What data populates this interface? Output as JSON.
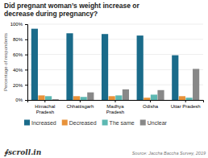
{
  "chart_data": {
    "type": "bar",
    "title": "Did pregnant woman’s weight increase or\ndecrease during pregnancy?",
    "categories": [
      "Himachal\nPradesh",
      "Chhattisgarh",
      "Madhya\nPradesh",
      "Odisha",
      "Uttar Pradesh"
    ],
    "series": [
      {
        "name": "Increased",
        "color": "#1a6b8a",
        "values": [
          94,
          88,
          87,
          85,
          59
        ]
      },
      {
        "name": "Decreased",
        "color": "#e8923a",
        "values": [
          6,
          5,
          5,
          3,
          5
        ]
      },
      {
        "name": "The same",
        "color": "#5db8b2",
        "values": [
          5,
          4,
          6,
          7,
          3
        ]
      },
      {
        "name": "Unclear",
        "color": "#888888",
        "values": [
          1,
          10,
          14,
          13,
          41
        ]
      }
    ],
    "ylabel": "Percentage of respondents",
    "ylim": [
      0,
      100
    ],
    "yticks": [
      {
        "value": 0,
        "label": "0%"
      },
      {
        "value": 20,
        "label": "20%"
      },
      {
        "value": 40,
        "label": "40%"
      },
      {
        "value": 60,
        "label": "60%"
      },
      {
        "value": 80,
        "label": "80%"
      },
      {
        "value": 100,
        "label": "100%"
      }
    ],
    "grid": true,
    "legend": "bottom",
    "annotations": [
      "∮scroll.in",
      "Source: Jaccha Baccha Survey, 2019"
    ]
  }
}
